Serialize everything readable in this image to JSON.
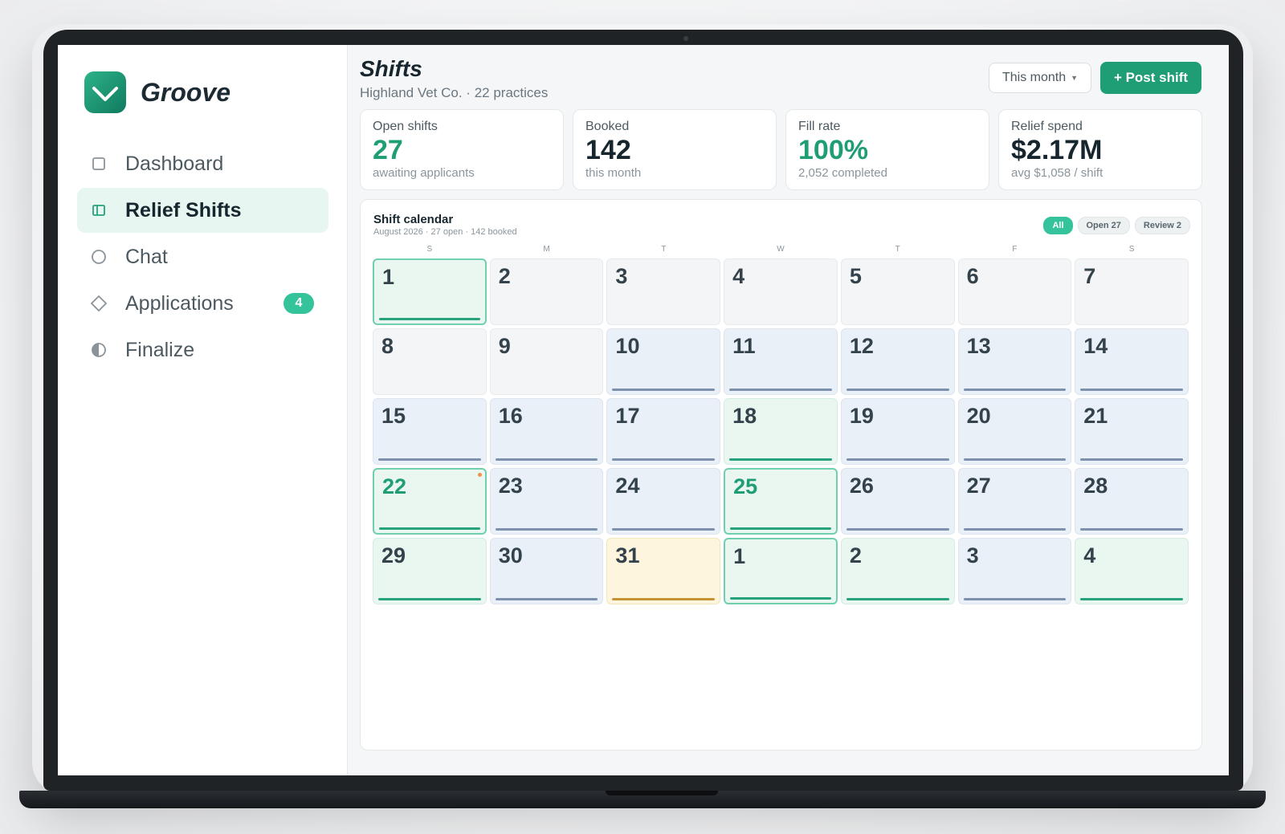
{
  "app": {
    "name": "Groove",
    "colors": {
      "accent": "#1f9d75",
      "accent_light": "#34c39a",
      "booked": "#7d90ad",
      "pending": "#c49432",
      "dot": "#f0924a"
    }
  },
  "sidebar": {
    "items": [
      {
        "label": "Dashboard",
        "icon": "square-icon",
        "active": false
      },
      {
        "label": "Relief Shifts",
        "icon": "columns-icon",
        "active": true
      },
      {
        "label": "Chat",
        "icon": "circle-icon",
        "active": false
      },
      {
        "label": "Applications",
        "icon": "diamond-icon",
        "active": false,
        "badge": "4"
      },
      {
        "label": "Finalize",
        "icon": "half-circle-icon",
        "active": false
      }
    ]
  },
  "header": {
    "title": "Shifts",
    "subtitle": "Highland Vet Co. · 22 practices",
    "period_select": "This month",
    "post_button": "+ Post shift"
  },
  "stats": [
    {
      "label": "Open shifts",
      "value": "27",
      "sub": "awaiting applicants",
      "accent": true
    },
    {
      "label": "Booked",
      "value": "142",
      "sub": "this month",
      "accent": false
    },
    {
      "label": "Fill rate",
      "value": "100%",
      "sub": "2,052 completed",
      "accent": true
    },
    {
      "label": "Relief spend",
      "value": "$2.17M",
      "sub": "avg $1,058 / shift",
      "accent": false
    }
  ],
  "calendar": {
    "title": "Shift calendar",
    "subtitle": "August 2026 · 27 open · 142 booked",
    "filters": [
      {
        "label": "All",
        "active": true
      },
      {
        "label": "Open 27",
        "active": false
      },
      {
        "label": "Review 2",
        "active": false
      }
    ],
    "weekdays": [
      "S",
      "M",
      "T",
      "W",
      "T",
      "F",
      "S"
    ],
    "days": [
      {
        "num": "1",
        "status": "open",
        "highlight": true,
        "selected": false,
        "dot": false
      },
      {
        "num": "2",
        "status": "none",
        "highlight": false,
        "selected": false,
        "dot": false
      },
      {
        "num": "3",
        "status": "none",
        "highlight": false,
        "selected": false,
        "dot": false
      },
      {
        "num": "4",
        "status": "none",
        "highlight": false,
        "selected": false,
        "dot": false
      },
      {
        "num": "5",
        "status": "none",
        "highlight": false,
        "selected": false,
        "dot": false
      },
      {
        "num": "6",
        "status": "none",
        "highlight": false,
        "selected": false,
        "dot": false
      },
      {
        "num": "7",
        "status": "none",
        "highlight": false,
        "selected": false,
        "dot": false
      },
      {
        "num": "8",
        "status": "none",
        "highlight": false,
        "selected": false,
        "dot": false
      },
      {
        "num": "9",
        "status": "none",
        "highlight": false,
        "selected": false,
        "dot": false
      },
      {
        "num": "10",
        "status": "booked",
        "highlight": false,
        "selected": false,
        "dot": false
      },
      {
        "num": "11",
        "status": "booked",
        "highlight": false,
        "selected": false,
        "dot": false
      },
      {
        "num": "12",
        "status": "booked",
        "highlight": false,
        "selected": false,
        "dot": false
      },
      {
        "num": "13",
        "status": "booked",
        "highlight": false,
        "selected": false,
        "dot": false
      },
      {
        "num": "14",
        "status": "booked",
        "highlight": false,
        "selected": false,
        "dot": false
      },
      {
        "num": "15",
        "status": "booked",
        "highlight": false,
        "selected": false,
        "dot": false
      },
      {
        "num": "16",
        "status": "booked",
        "highlight": false,
        "selected": false,
        "dot": false
      },
      {
        "num": "17",
        "status": "booked",
        "highlight": false,
        "selected": false,
        "dot": false
      },
      {
        "num": "18",
        "status": "open",
        "highlight": false,
        "selected": false,
        "dot": false
      },
      {
        "num": "19",
        "status": "booked",
        "highlight": false,
        "selected": false,
        "dot": false
      },
      {
        "num": "20",
        "status": "booked",
        "highlight": false,
        "selected": false,
        "dot": false
      },
      {
        "num": "21",
        "status": "booked",
        "highlight": false,
        "selected": false,
        "dot": false
      },
      {
        "num": "22",
        "status": "open",
        "highlight": true,
        "selected": true,
        "dot": true
      },
      {
        "num": "23",
        "status": "booked",
        "highlight": false,
        "selected": false,
        "dot": false
      },
      {
        "num": "24",
        "status": "booked",
        "highlight": false,
        "selected": false,
        "dot": false
      },
      {
        "num": "25",
        "status": "open",
        "highlight": true,
        "selected": true,
        "dot": false
      },
      {
        "num": "26",
        "status": "booked",
        "highlight": false,
        "selected": false,
        "dot": false
      },
      {
        "num": "27",
        "status": "booked",
        "highlight": false,
        "selected": false,
        "dot": false
      },
      {
        "num": "28",
        "status": "booked",
        "highlight": false,
        "selected": false,
        "dot": false
      },
      {
        "num": "29",
        "status": "open",
        "highlight": false,
        "selected": false,
        "dot": false
      },
      {
        "num": "30",
        "status": "booked",
        "highlight": false,
        "selected": false,
        "dot": false
      },
      {
        "num": "31",
        "status": "pending",
        "highlight": false,
        "selected": false,
        "dot": false
      },
      {
        "num": "1",
        "status": "open",
        "highlight": true,
        "selected": false,
        "dot": false
      },
      {
        "num": "2",
        "status": "open",
        "highlight": false,
        "selected": false,
        "dot": false
      },
      {
        "num": "3",
        "status": "booked",
        "highlight": false,
        "selected": false,
        "dot": false
      },
      {
        "num": "4",
        "status": "open",
        "highlight": false,
        "selected": false,
        "dot": false
      }
    ]
  }
}
